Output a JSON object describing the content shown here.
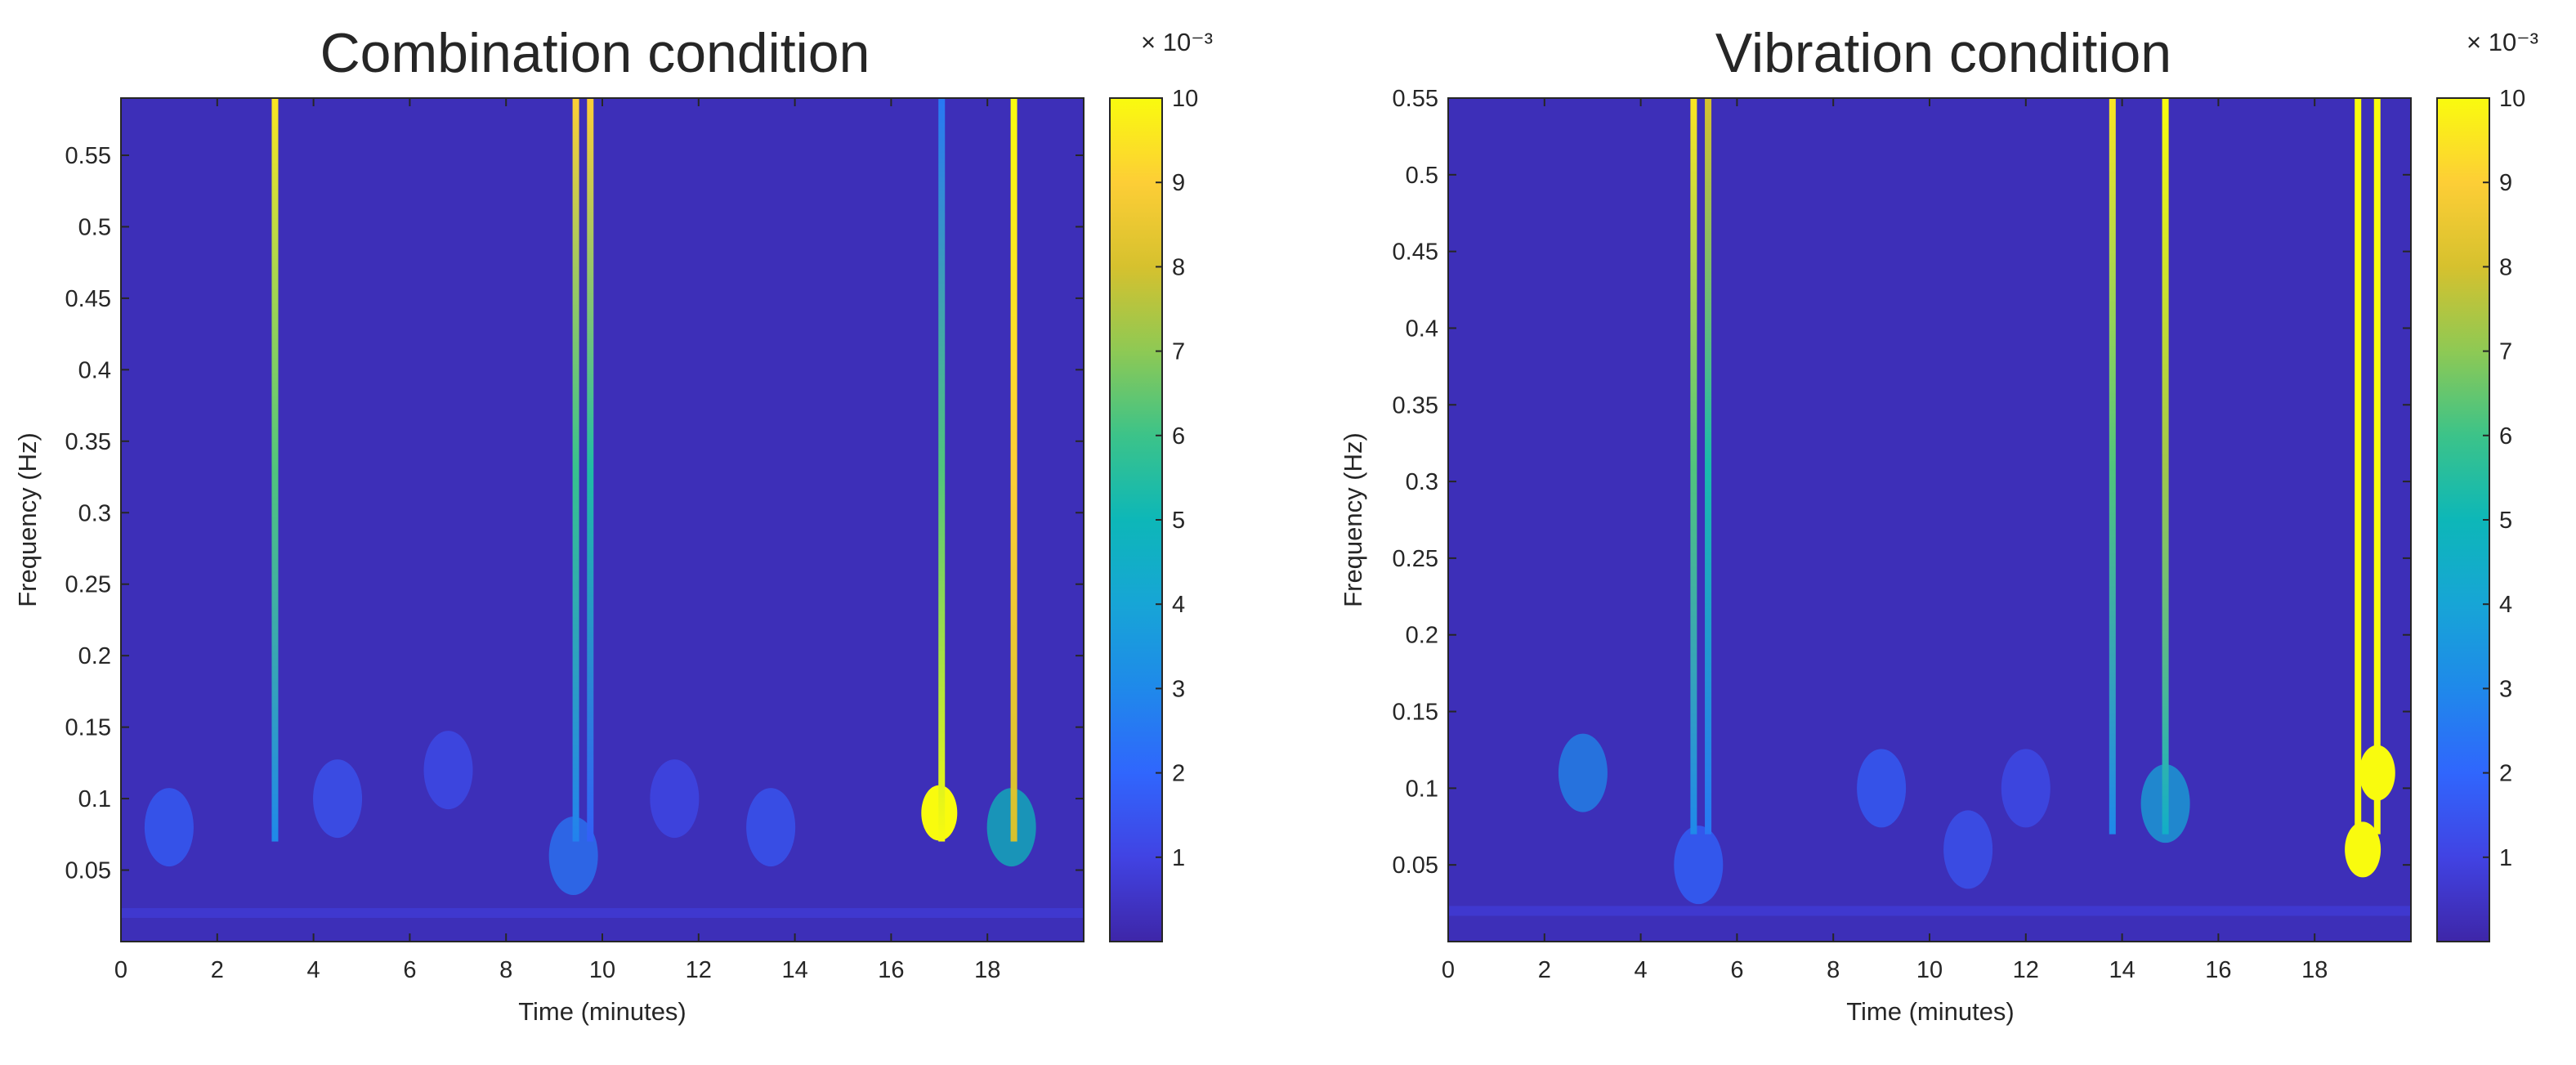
{
  "chart_data": [
    {
      "type": "heatmap",
      "title": "Combination condition",
      "xlabel": "Time (minutes)",
      "ylabel": "Frequency (Hz)",
      "xlim": [
        0,
        20
      ],
      "ylim": [
        0,
        0.59
      ],
      "xticks": [
        "0",
        "2",
        "4",
        "6",
        "8",
        "10",
        "12",
        "14",
        "16",
        "18"
      ],
      "yticks": [
        "0.05",
        "0.1",
        "0.15",
        "0.2",
        "0.25",
        "0.3",
        "0.35",
        "0.4",
        "0.45",
        "0.5",
        "0.55"
      ],
      "colorbar": {
        "multiplier": "× 10⁻³",
        "ticks": [
          "1",
          "2",
          "3",
          "4",
          "5",
          "6",
          "7",
          "8",
          "9",
          "10"
        ],
        "range": [
          0,
          10
        ]
      },
      "background_level": 0.3,
      "ridges": [
        {
          "time": 3.2,
          "low_level": 3.0,
          "high_level": 9.5
        },
        {
          "time": 9.45,
          "low_level": 2.8,
          "high_level": 9.0
        },
        {
          "time": 9.75,
          "low_level": 1.8,
          "high_level": 9.0
        },
        {
          "time": 17.05,
          "low_level": 10.0,
          "high_level": 2.5
        },
        {
          "time": 18.55,
          "low_level": 8.0,
          "high_level": 10.0
        }
      ],
      "blobs": [
        {
          "time": 17.0,
          "freq": 0.09,
          "level": 10.0
        },
        {
          "time": 18.5,
          "freq": 0.08,
          "level": 5.0
        },
        {
          "time": 9.4,
          "freq": 0.06,
          "level": 2.5
        },
        {
          "time": 1.0,
          "freq": 0.08,
          "level": 1.8
        },
        {
          "time": 4.5,
          "freq": 0.1,
          "level": 1.5
        },
        {
          "time": 13.5,
          "freq": 0.08,
          "level": 1.6
        },
        {
          "time": 6.8,
          "freq": 0.12,
          "level": 1.3
        },
        {
          "time": 11.5,
          "freq": 0.1,
          "level": 1.2
        }
      ]
    },
    {
      "type": "heatmap",
      "title": "Vibration condition",
      "xlabel": "Time (minutes)",
      "ylabel": "Frequency (Hz)",
      "xlim": [
        0,
        20
      ],
      "ylim": [
        0,
        0.55
      ],
      "xticks": [
        "0",
        "2",
        "4",
        "6",
        "8",
        "10",
        "12",
        "14",
        "16",
        "18"
      ],
      "yticks": [
        "0.05",
        "0.1",
        "0.15",
        "0.2",
        "0.25",
        "0.3",
        "0.35",
        "0.4",
        "0.45",
        "0.5",
        "0.55"
      ],
      "colorbar": {
        "multiplier": "× 10⁻³",
        "ticks": [
          "1",
          "2",
          "3",
          "4",
          "5",
          "6",
          "7",
          "8",
          "9",
          "10"
        ],
        "range": [
          0,
          10
        ]
      },
      "background_level": 0.3,
      "ridges": [
        {
          "time": 5.1,
          "low_level": 3.0,
          "high_level": 9.5
        },
        {
          "time": 5.4,
          "low_level": 2.5,
          "high_level": 8.0
        },
        {
          "time": 13.8,
          "low_level": 3.0,
          "high_level": 9.5
        },
        {
          "time": 14.9,
          "low_level": 4.5,
          "high_level": 10.0
        },
        {
          "time": 18.9,
          "low_level": 10.0,
          "high_level": 10.0
        },
        {
          "time": 19.3,
          "low_level": 10.0,
          "high_level": 10.0
        }
      ],
      "blobs": [
        {
          "time": 19.0,
          "freq": 0.06,
          "level": 10.0
        },
        {
          "time": 19.3,
          "freq": 0.11,
          "level": 10.0
        },
        {
          "time": 14.9,
          "freq": 0.09,
          "level": 4.0
        },
        {
          "time": 2.8,
          "freq": 0.11,
          "level": 3.0
        },
        {
          "time": 5.2,
          "freq": 0.05,
          "level": 2.0
        },
        {
          "time": 9.0,
          "freq": 0.1,
          "level": 1.8
        },
        {
          "time": 10.8,
          "freq": 0.06,
          "level": 1.5
        },
        {
          "time": 12.0,
          "freq": 0.1,
          "level": 1.3
        }
      ]
    }
  ]
}
